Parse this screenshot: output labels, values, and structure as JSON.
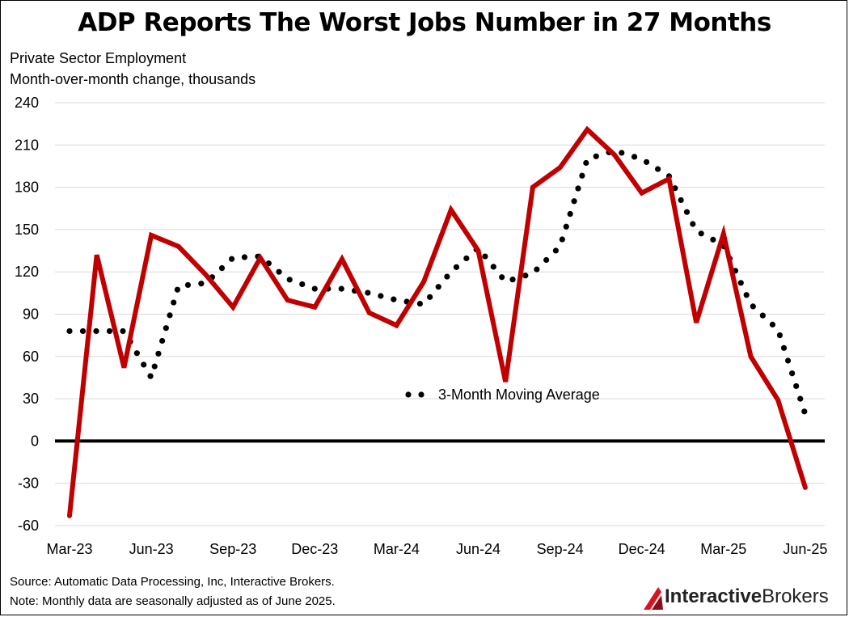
{
  "header": {
    "title": "ADP Reports The Worst Jobs Number in 27 Months",
    "subtitle_line1": "Private Sector Employment",
    "subtitle_line2": "Month-over-month change, thousands"
  },
  "footer": {
    "source": "Source: Automatic Data Processing, Inc, Interactive Brokers.",
    "note": "Note: Monthly data are seasonally adjusted as of June 2025."
  },
  "logo": {
    "text_bold": "Interactive",
    "text_regular": "Brokers",
    "icon": "interactive-brokers-logo-icon"
  },
  "colors": {
    "series": "#c00000",
    "average": "#000000",
    "zero_line": "#000000",
    "grid": "#d9d9d9"
  },
  "chart_data": {
    "type": "line",
    "ylim": [
      -60,
      240
    ],
    "yticks": [
      -60,
      -30,
      0,
      30,
      60,
      90,
      120,
      150,
      180,
      210,
      240
    ],
    "xtick_labels": [
      "Mar-23",
      "Jun-23",
      "Sep-23",
      "Dec-23",
      "Mar-24",
      "Jun-24",
      "Sep-24",
      "Dec-24",
      "Mar-25",
      "Jun-25"
    ],
    "xtick_every": 3,
    "grid": true,
    "series": [
      {
        "style": "solid",
        "values": [
          -53,
          132,
          52,
          146,
          138,
          118,
          95,
          130,
          100,
          95,
          129,
          91,
          82,
          113,
          164,
          135,
          42,
          180,
          194,
          221,
          203,
          176,
          186,
          84,
          147,
          60,
          29,
          -33
        ]
      },
      {
        "name": "3-Month Moving Average",
        "style": "dotted",
        "values": [
          78,
          78,
          78,
          45,
          110,
          112,
          130,
          131,
          115,
          108,
          108,
          105,
          100,
          97,
          120,
          137,
          113,
          119,
          138,
          200,
          206,
          200,
          188,
          149,
          139,
          97,
          79,
          19
        ]
      }
    ],
    "legend": {
      "label": "3-Month Moving Average",
      "placement": "center"
    }
  }
}
